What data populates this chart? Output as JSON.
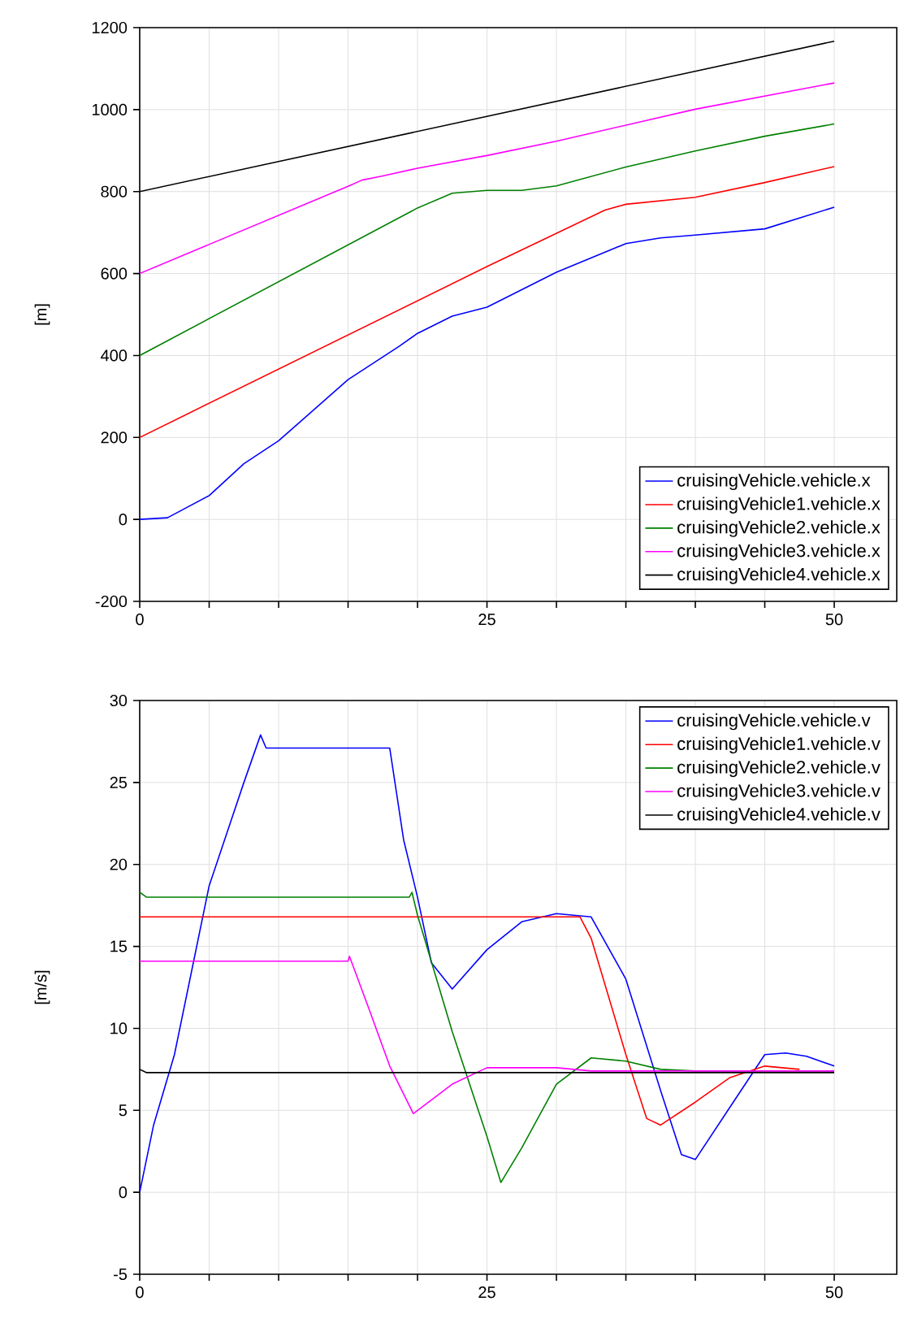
{
  "chart_data": [
    {
      "type": "line",
      "ylabel": "[m]",
      "xlim": [
        0,
        54.5
      ],
      "ylim": [
        -200,
        1200
      ],
      "xticks": [
        0,
        {
          "value": 5,
          "label": null
        },
        {
          "value": 10,
          "label": null
        },
        {
          "value": 15,
          "label": null
        },
        {
          "value": 20,
          "label": null
        },
        25,
        {
          "value": 30,
          "label": null
        },
        {
          "value": 35,
          "label": null
        },
        {
          "value": 40,
          "label": null
        },
        {
          "value": 45,
          "label": null
        },
        50
      ],
      "yticks": [
        -200,
        0,
        200,
        400,
        600,
        800,
        1000,
        1200
      ],
      "grid": true,
      "legend": "bottom right",
      "series": [
        {
          "name": "cruisingVehicle.vehicle.x",
          "color": "#0000ff",
          "x": [
            0,
            2,
            5,
            7.5,
            10,
            15,
            18.7,
            20,
            22.5,
            25,
            30,
            35,
            37.5,
            40,
            45,
            50
          ],
          "values": [
            0,
            4,
            58,
            136,
            192,
            341,
            423,
            454,
            496,
            518,
            603,
            673,
            687,
            694,
            709,
            762
          ]
        },
        {
          "name": "cruisingVehicle1.vehicle.x",
          "color": "#ff0000",
          "x": [
            0,
            25,
            33.5,
            35,
            40,
            45,
            50
          ],
          "values": [
            200,
            617,
            755,
            769,
            786,
            822,
            861
          ]
        },
        {
          "name": "cruisingVehicle2.vehicle.x",
          "color": "#008000",
          "x": [
            0,
            19.5,
            20,
            22.5,
            25,
            27.5,
            30,
            35,
            40,
            45,
            50
          ],
          "values": [
            400,
            751,
            760,
            796,
            803,
            803,
            814,
            860,
            899,
            935,
            965
          ]
        },
        {
          "name": "cruisingVehicle3.vehicle.x",
          "color": "#ff00ff",
          "x": [
            0,
            15,
            16,
            17.5,
            20,
            25,
            30,
            40,
            50
          ],
          "values": [
            600,
            813,
            828,
            838,
            857,
            888,
            923,
            1001,
            1065
          ]
        },
        {
          "name": "cruisingVehicle4.vehicle.x",
          "color": "#000000",
          "x": [
            0,
            50
          ],
          "values": [
            800,
            1167
          ]
        }
      ]
    },
    {
      "type": "line",
      "ylabel": "[m/s]",
      "xlim": [
        0,
        54.5
      ],
      "ylim": [
        -5,
        30
      ],
      "xticks": [
        0,
        {
          "value": 5,
          "label": null
        },
        {
          "value": 10,
          "label": null
        },
        {
          "value": 15,
          "label": null
        },
        {
          "value": 20,
          "label": null
        },
        25,
        {
          "value": 30,
          "label": null
        },
        {
          "value": 35,
          "label": null
        },
        {
          "value": 40,
          "label": null
        },
        {
          "value": 45,
          "label": null
        },
        50
      ],
      "yticks": [
        -5,
        0,
        5,
        10,
        15,
        20,
        25,
        30
      ],
      "grid": true,
      "legend": "top right",
      "series": [
        {
          "name": "cruisingVehicle.vehicle.v",
          "color": "#0000ff",
          "x": [
            0,
            1,
            2.5,
            5,
            7.5,
            8.7,
            9.1,
            18,
            19,
            20,
            21,
            22.5,
            25,
            27.5,
            30,
            32.5,
            35,
            37.5,
            39,
            40,
            42.5,
            45,
            46.5,
            48,
            50
          ],
          "values": [
            0,
            4.1,
            8.4,
            18.7,
            25,
            27.9,
            27.1,
            27.1,
            21.5,
            18,
            14,
            12.4,
            14.8,
            16.5,
            17,
            16.8,
            13,
            6.2,
            2.3,
            2,
            5.2,
            8.4,
            8.5,
            8.3,
            7.7
          ]
        },
        {
          "name": "cruisingVehicle1.vehicle.v",
          "color": "#ff0000",
          "x": [
            0,
            31.7,
            32.5,
            35,
            36.5,
            37.5,
            40,
            42.5,
            45,
            47.5
          ],
          "values": [
            16.8,
            16.8,
            15.5,
            8.4,
            4.5,
            4.1,
            5.5,
            7,
            7.7,
            7.5
          ]
        },
        {
          "name": "cruisingVehicle2.vehicle.v",
          "color": "#008000",
          "x": [
            0,
            0.5,
            19.4,
            19.6,
            20,
            22.5,
            25,
            26,
            27.5,
            30,
            32.5,
            35,
            37.5,
            40,
            50
          ],
          "values": [
            18.3,
            18,
            18,
            18.3,
            16.9,
            9.8,
            3.4,
            0.6,
            2.7,
            6.6,
            8.2,
            8,
            7.5,
            7.4,
            7.4
          ]
        },
        {
          "name": "cruisingVehicle3.vehicle.v",
          "color": "#ff00ff",
          "x": [
            0,
            15,
            15.1,
            16.5,
            18,
            19.7,
            22.5,
            25,
            30,
            32.5,
            40,
            50
          ],
          "values": [
            14.1,
            14.1,
            14.4,
            11.2,
            7.7,
            4.8,
            6.6,
            7.6,
            7.6,
            7.4,
            7.4,
            7.4
          ]
        },
        {
          "name": "cruisingVehicle4.vehicle.v",
          "color": "#000000",
          "x": [
            0,
            0.5,
            50
          ],
          "values": [
            7.5,
            7.3,
            7.3
          ]
        }
      ]
    }
  ]
}
